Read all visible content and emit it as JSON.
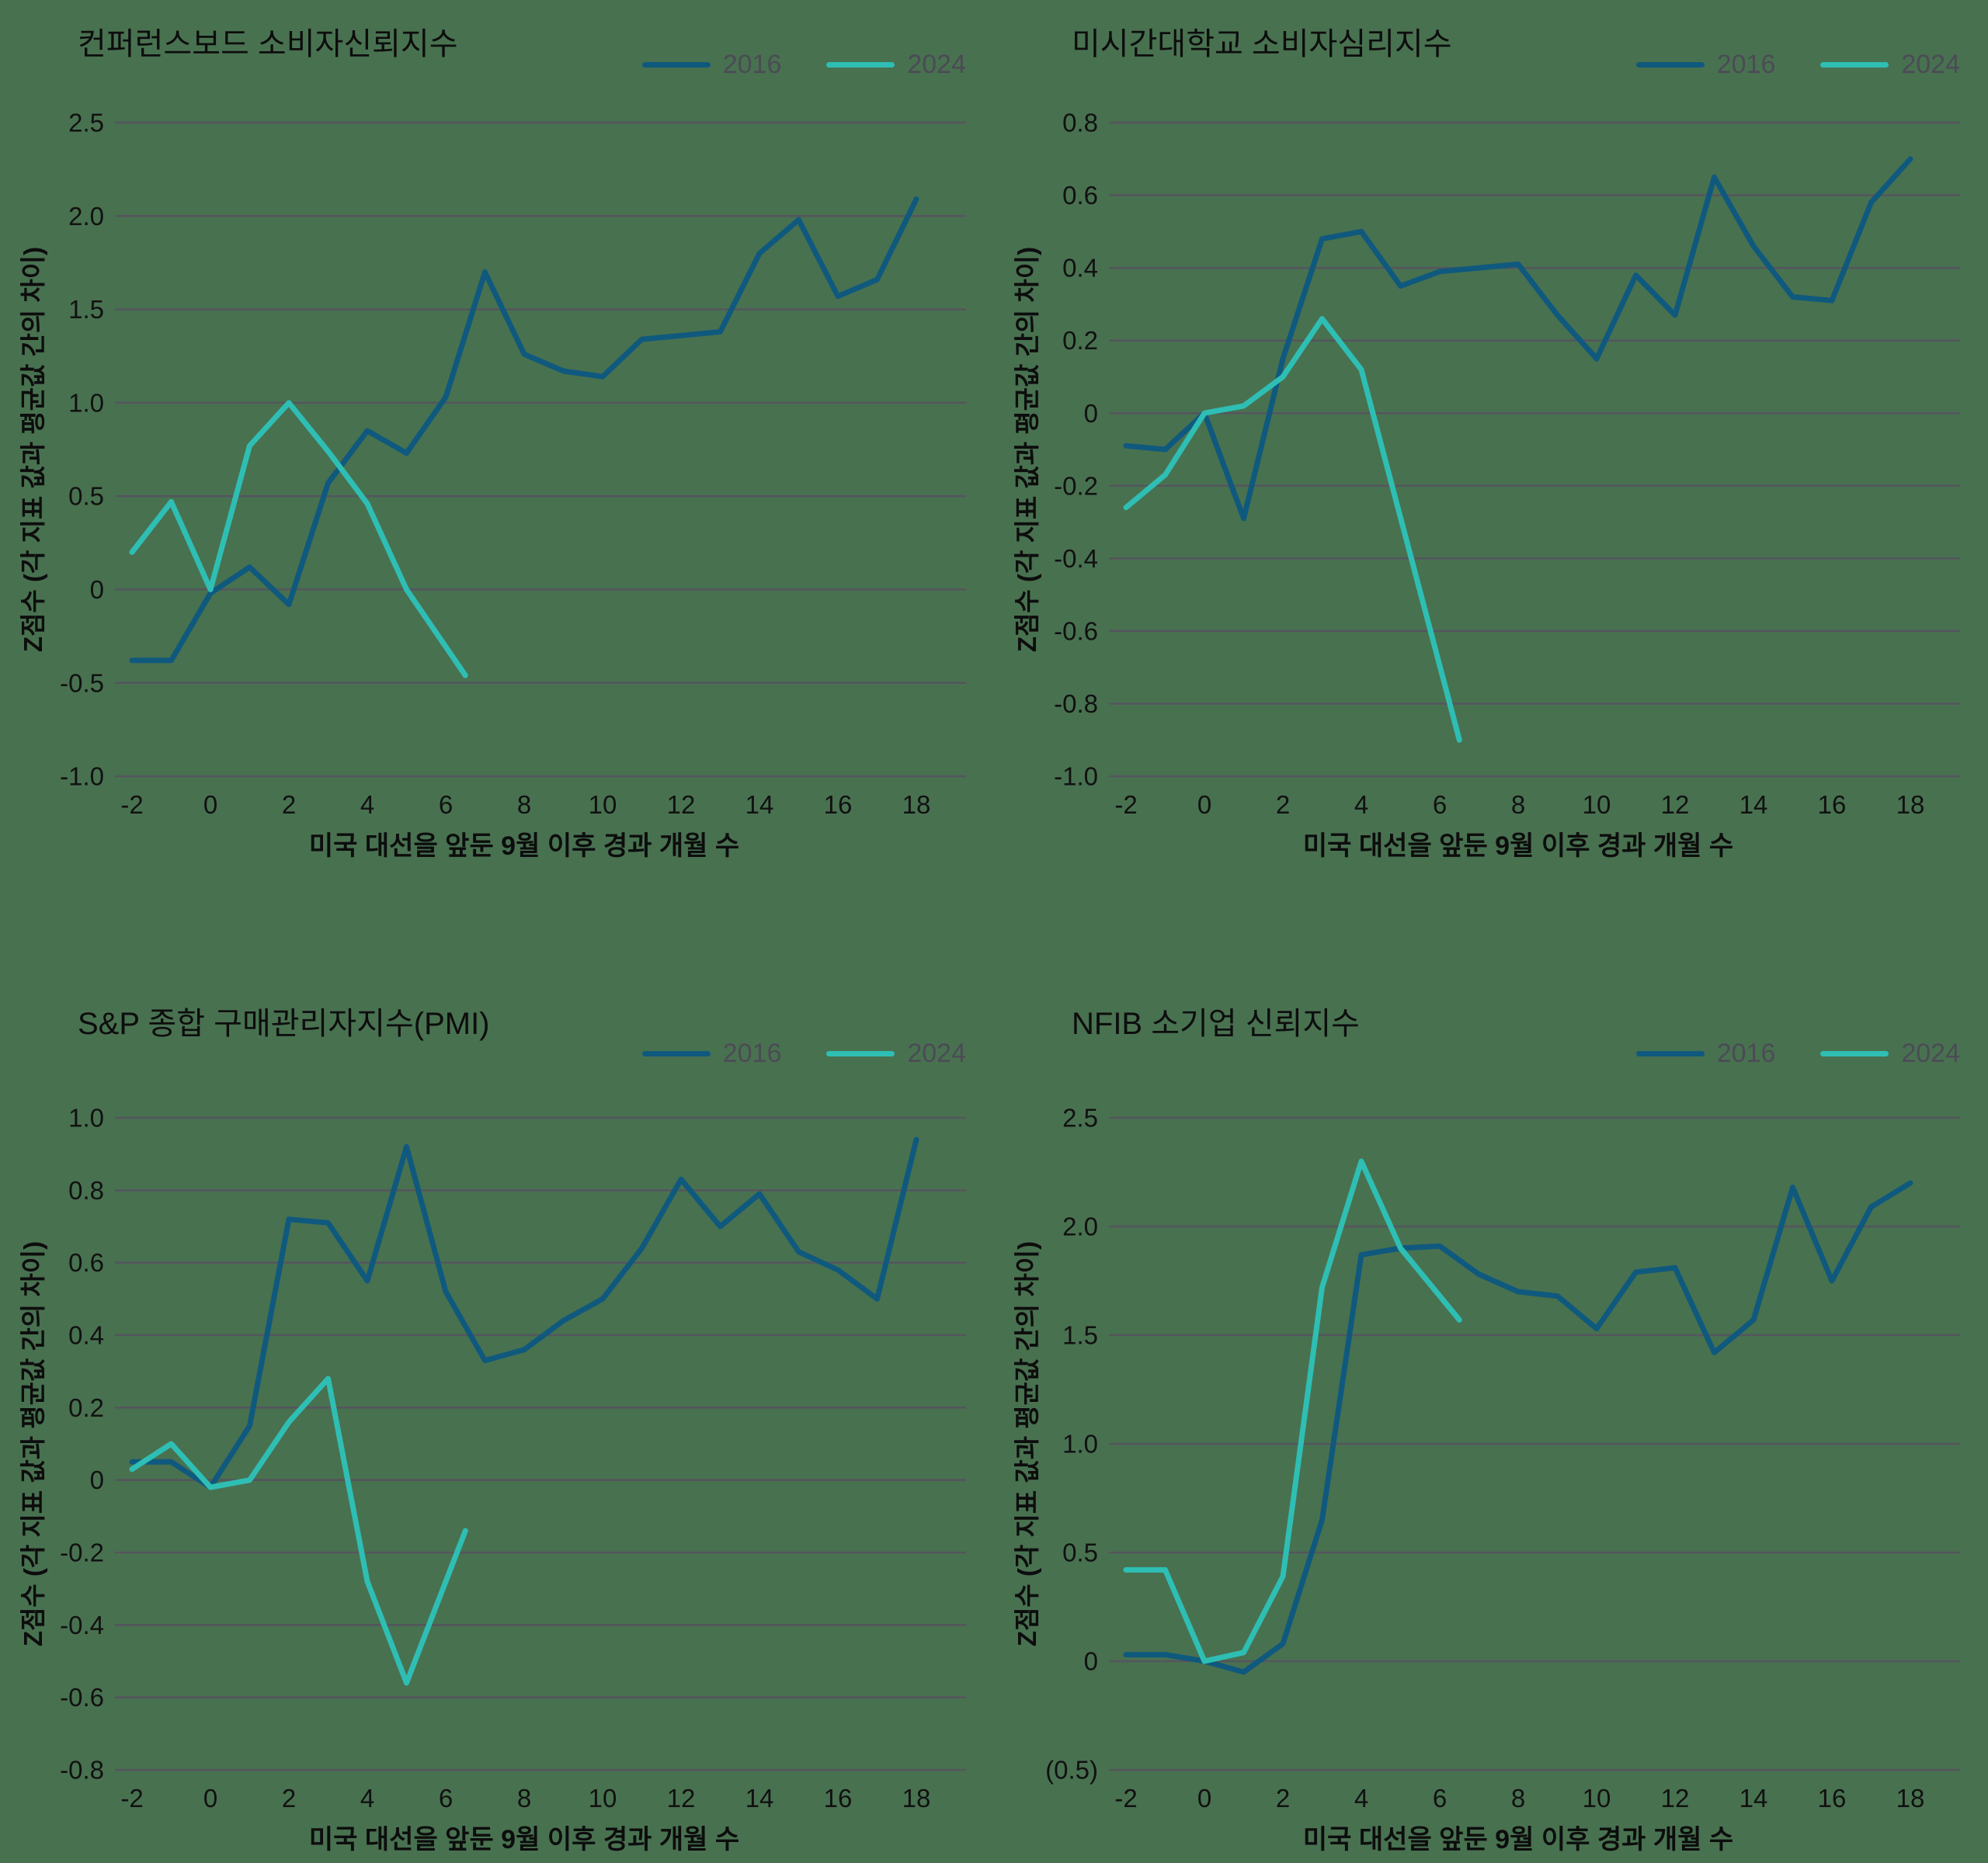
{
  "page": {
    "background_color": "#487150",
    "grid": "horizontal",
    "legend_position": "top-right"
  },
  "colors": {
    "series_2016": "#10597E",
    "series_2024": "#2EBEB4",
    "gridline": "#55555E",
    "tick_text": "#111111",
    "title_text": "#0D0D0D",
    "legend_text": "#4B4B55"
  },
  "axis": {
    "x_title": "미국 대선을 앞둔 9월 이후 경과 개월 수",
    "y_title": "Z점수 (각 지표 값과 평균값 간의 차이)",
    "x_ticks": [
      -2,
      0,
      2,
      4,
      6,
      8,
      10,
      12,
      14,
      16,
      18
    ]
  },
  "chart_data": [
    {
      "type": "line",
      "position": "top-left",
      "title": "컨퍼런스보드 소비자신뢰지수",
      "xlabel": "미국 대선을 앞둔 9월 이후 경과 개월 수",
      "ylabel": "Z점수 (각 지표 값과 평균값 간의 차이)",
      "xlim": [
        -2,
        18
      ],
      "ylim": [
        -1.0,
        2.5
      ],
      "x_ticks": [
        -2,
        0,
        2,
        4,
        6,
        8,
        10,
        12,
        14,
        16,
        18
      ],
      "y_tick_labels": [
        "2.5",
        "2.0",
        "1.5",
        "1.0",
        "0.5",
        "0",
        "-0.5",
        "-1.0"
      ],
      "y_tick_values": [
        2.5,
        2.0,
        1.5,
        1.0,
        0.5,
        0,
        -0.5,
        -1.0
      ],
      "series": [
        {
          "name": "2016",
          "color_key": "series_2016",
          "x": [
            -2,
            -1,
            0,
            1,
            2,
            3,
            4,
            5,
            6,
            7,
            8,
            9,
            10,
            11,
            12,
            13,
            14,
            15,
            16,
            17,
            18
          ],
          "values": [
            -0.38,
            -0.38,
            -0.02,
            0.12,
            -0.08,
            0.57,
            0.85,
            0.73,
            1.03,
            1.7,
            1.26,
            1.17,
            1.14,
            1.34,
            1.36,
            1.38,
            1.8,
            1.98,
            1.57,
            1.66,
            2.09
          ]
        },
        {
          "name": "2024",
          "color_key": "series_2024",
          "x": [
            -2,
            -1,
            0,
            1,
            2,
            3,
            4,
            5,
            6.5
          ],
          "values": [
            0.2,
            0.47,
            0.0,
            0.77,
            1.0,
            0.74,
            0.46,
            0.0,
            -0.46
          ]
        }
      ]
    },
    {
      "type": "line",
      "position": "top-right",
      "title": "미시간대학교 소비자심리지수",
      "xlabel": "미국 대선을 앞둔 9월 이후 경과 개월 수",
      "ylabel": "Z점수 (각 지표 값과 평균값 간의 차이)",
      "xlim": [
        -2,
        18
      ],
      "ylim": [
        -1.0,
        0.8
      ],
      "x_ticks": [
        -2,
        0,
        2,
        4,
        6,
        8,
        10,
        12,
        14,
        16,
        18
      ],
      "y_tick_labels": [
        "0.8",
        "0.6",
        "0.4",
        "0.2",
        "0",
        "-0.2",
        "-0.4",
        "-0.6",
        "-0.8",
        "-1.0"
      ],
      "y_tick_values": [
        0.8,
        0.6,
        0.4,
        0.2,
        0,
        -0.2,
        -0.4,
        -0.6,
        -0.8,
        -1.0
      ],
      "series": [
        {
          "name": "2016",
          "color_key": "series_2016",
          "x": [
            -2,
            -1,
            0,
            1,
            2,
            3,
            4,
            5,
            6,
            7,
            8,
            9,
            10,
            11,
            12,
            13,
            14,
            15,
            16,
            17,
            18
          ],
          "values": [
            -0.09,
            -0.1,
            0.0,
            -0.29,
            0.15,
            0.48,
            0.5,
            0.35,
            0.39,
            0.4,
            0.41,
            0.27,
            0.15,
            0.38,
            0.27,
            0.65,
            0.46,
            0.32,
            0.31,
            0.58,
            0.7
          ]
        },
        {
          "name": "2024",
          "color_key": "series_2024",
          "x": [
            -2,
            -1,
            0,
            1,
            2,
            3,
            4,
            6.5
          ],
          "values": [
            -0.26,
            -0.17,
            0.0,
            0.02,
            0.1,
            0.26,
            0.12,
            -0.9
          ]
        }
      ]
    },
    {
      "type": "line",
      "position": "bottom-left",
      "title": "S&P 종합 구매관리자지수(PMI)",
      "xlabel": "미국 대선을 앞둔 9월 이후 경과 개월 수",
      "ylabel": "Z점수 (각 지표 값과 평균값 간의 차이)",
      "xlim": [
        -2,
        18
      ],
      "ylim": [
        -0.8,
        1.0
      ],
      "x_ticks": [
        -2,
        0,
        2,
        4,
        6,
        8,
        10,
        12,
        14,
        16,
        18
      ],
      "y_tick_labels": [
        "1.0",
        "0.8",
        "0.6",
        "0.4",
        "0.2",
        "0",
        "-0.2",
        "-0.4",
        "-0.6",
        "-0.8"
      ],
      "y_tick_values": [
        1.0,
        0.8,
        0.6,
        0.4,
        0.2,
        0,
        -0.2,
        -0.4,
        -0.6,
        -0.8
      ],
      "series": [
        {
          "name": "2016",
          "color_key": "series_2016",
          "x": [
            -2,
            -1,
            0,
            1,
            2,
            3,
            4,
            5,
            6,
            7,
            8,
            9,
            10,
            11,
            12,
            13,
            14,
            15,
            16,
            17,
            18
          ],
          "values": [
            0.05,
            0.05,
            -0.02,
            0.15,
            0.72,
            0.71,
            0.55,
            0.92,
            0.52,
            0.33,
            0.36,
            0.44,
            0.5,
            0.64,
            0.83,
            0.7,
            0.79,
            0.63,
            0.58,
            0.5,
            0.94
          ]
        },
        {
          "name": "2024",
          "color_key": "series_2024",
          "x": [
            -2,
            -1,
            0,
            1,
            2,
            3,
            4,
            5,
            6.5
          ],
          "values": [
            0.03,
            0.1,
            -0.02,
            0.0,
            0.16,
            0.28,
            -0.28,
            -0.56,
            -0.14
          ]
        }
      ]
    },
    {
      "type": "line",
      "position": "bottom-right",
      "title": "NFIB 소기업 신뢰지수",
      "xlabel": "미국 대선을 앞둔 9월 이후 경과 개월 수",
      "ylabel": "Z점수 (각 지표 값과 평균값 간의 차이)",
      "xlim": [
        -2,
        18
      ],
      "ylim": [
        -0.5,
        2.5
      ],
      "x_ticks": [
        -2,
        0,
        2,
        4,
        6,
        8,
        10,
        12,
        14,
        16,
        18
      ],
      "y_tick_labels": [
        "2.5",
        "2.0",
        "1.5",
        "1.0",
        "0.5",
        "0",
        "(0.5)"
      ],
      "y_tick_values": [
        2.5,
        2.0,
        1.5,
        1.0,
        0.5,
        0,
        -0.5
      ],
      "series": [
        {
          "name": "2016",
          "color_key": "series_2016",
          "x": [
            -2,
            -1,
            0,
            1,
            2,
            3,
            4,
            5,
            6,
            7,
            8,
            9,
            10,
            11,
            12,
            13,
            14,
            15,
            16,
            17,
            18
          ],
          "values": [
            0.03,
            0.03,
            0.0,
            -0.05,
            0.08,
            0.65,
            1.87,
            1.9,
            1.91,
            1.78,
            1.7,
            1.68,
            1.53,
            1.79,
            1.81,
            1.42,
            1.57,
            2.18,
            1.75,
            2.09,
            2.2
          ]
        },
        {
          "name": "2024",
          "color_key": "series_2024",
          "x": [
            -2,
            -1,
            0,
            1,
            2,
            3,
            4,
            5,
            6.5
          ],
          "values": [
            0.42,
            0.42,
            0.0,
            0.04,
            0.39,
            1.72,
            2.3,
            1.9,
            1.57
          ]
        }
      ]
    }
  ]
}
